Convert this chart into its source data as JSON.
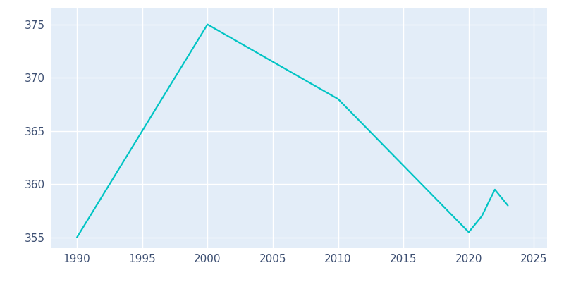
{
  "years": [
    1990,
    2000,
    2010,
    2020,
    2021,
    2022,
    2023
  ],
  "population": [
    355,
    375,
    368,
    355.5,
    357,
    359.5,
    358
  ],
  "line_color": "#00C4C4",
  "background_color": "#E3EDF8",
  "figure_background": "#FFFFFF",
  "grid_color": "#FFFFFF",
  "axis_label_color": "#3D4F72",
  "xlim": [
    1988,
    2026
  ],
  "ylim": [
    354,
    376.5
  ],
  "yticks": [
    355,
    360,
    365,
    370,
    375
  ],
  "xticks": [
    1990,
    1995,
    2000,
    2005,
    2010,
    2015,
    2020,
    2025
  ],
  "linewidth": 1.6,
  "figsize": [
    8.0,
    4.0
  ],
  "dpi": 100
}
